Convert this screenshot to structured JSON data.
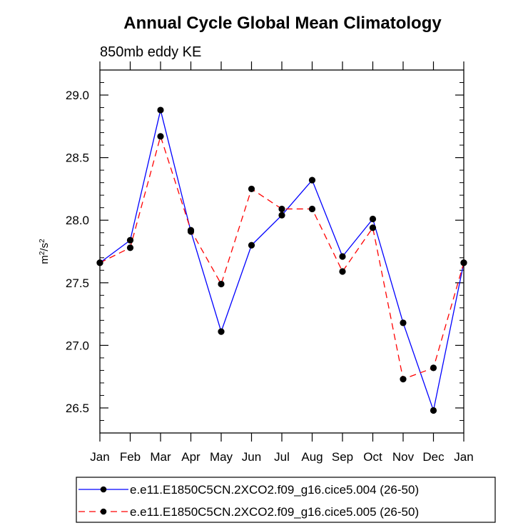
{
  "chart_data": {
    "type": "line",
    "title": "Annual Cycle Global Mean Climatology",
    "subtitle": "850mb eddy KE",
    "ylabel_base": "m",
    "ylabel_sup1": "2",
    "ylabel_mid": "/s",
    "ylabel_sup2": "2",
    "xlabel": "",
    "categories": [
      "Jan",
      "Feb",
      "Mar",
      "Apr",
      "May",
      "Jun",
      "Jul",
      "Aug",
      "Sep",
      "Oct",
      "Nov",
      "Dec",
      "Jan"
    ],
    "ylim": [
      26.3,
      29.2
    ],
    "yticks": [
      26.5,
      27.0,
      27.5,
      28.0,
      28.5,
      29.0
    ],
    "ytick_labels": [
      "26.5",
      "27.0",
      "27.5",
      "28.0",
      "28.5",
      "29.0"
    ],
    "series": [
      {
        "name": "e.e11.E1850C5CN.2XCO2.f09_g16.cice5.004 (26-50)",
        "color": "#0000ff",
        "dash": "solid",
        "values": [
          27.66,
          27.84,
          28.88,
          27.91,
          27.11,
          27.8,
          28.04,
          28.32,
          27.71,
          28.01,
          27.18,
          26.48,
          27.66
        ]
      },
      {
        "name": "e.e11.E1850C5CN.2XCO2.f09_g16.cice5.005 (26-50)",
        "color": "#ff0000",
        "dash": "dashed",
        "values": [
          27.66,
          27.78,
          28.67,
          27.92,
          27.49,
          28.25,
          28.09,
          28.09,
          27.59,
          27.94,
          26.73,
          26.82,
          27.66
        ]
      }
    ]
  }
}
